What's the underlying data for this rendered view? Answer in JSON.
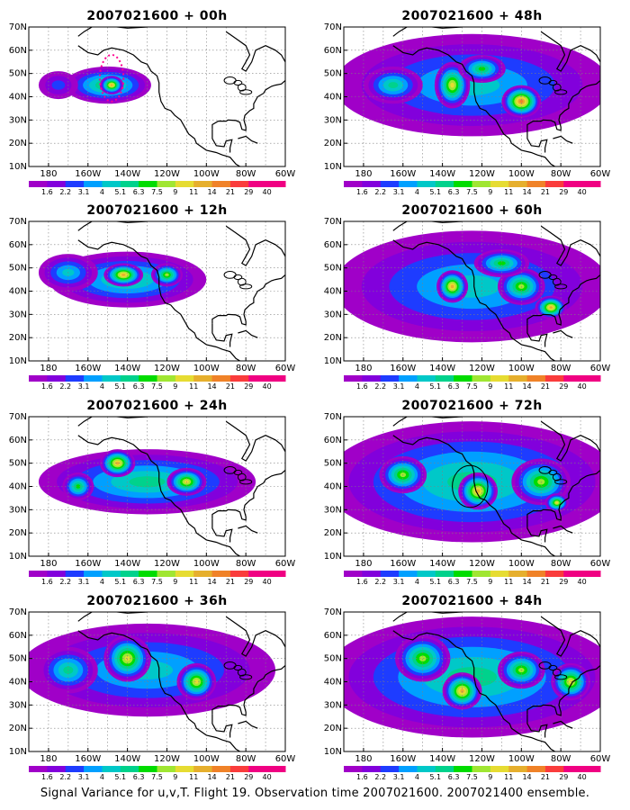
{
  "caption": "Signal Variance for u,v,T. Flight 19. Observation time 2007021600. 2007021400 ensemble.",
  "colorbar": {
    "labels": [
      "1.6",
      "2.2",
      "3.1",
      "4",
      "5.1",
      "6.3",
      "7.5",
      "9",
      "11",
      "14",
      "21",
      "29",
      "40"
    ],
    "colors": [
      "#a000c8",
      "#8200dc",
      "#1e3cff",
      "#00a0ff",
      "#00c8c8",
      "#00d28c",
      "#00dc00",
      "#a0e632",
      "#e6dc32",
      "#e6af2d",
      "#f08228",
      "#fa3c3c",
      "#f00082"
    ]
  },
  "map": {
    "lon_ticks": [
      "180",
      "160W",
      "140W",
      "120W",
      "100W",
      "80W",
      "60W"
    ],
    "lat_ticks": [
      "10N",
      "20N",
      "30N",
      "40N",
      "50N",
      "60N",
      "70N"
    ],
    "land_color": "#000000"
  },
  "chart_data": [
    {
      "type": "heatmap",
      "title": "2007021600 + 00h",
      "forecast_hour": 0,
      "blobs": [
        {
          "lon": -150,
          "lat": 45,
          "rx": 22,
          "ry": 8,
          "level": 6
        },
        {
          "lon": -175,
          "lat": 45,
          "rx": 10,
          "ry": 6,
          "level": 2
        },
        {
          "lon": -148,
          "lat": 45,
          "rx": 6,
          "ry": 4,
          "level": 9
        }
      ],
      "annotation": {
        "shape": "dotted-ellipse",
        "lon": -148,
        "lat": 48,
        "rlon": 6,
        "rlat": 10,
        "color": "#ff0090"
      }
    },
    {
      "type": "heatmap",
      "title": "2007021600 + 12h",
      "forecast_hour": 12,
      "blobs": [
        {
          "lon": -140,
          "lat": 45,
          "rx": 40,
          "ry": 12,
          "level": 5
        },
        {
          "lon": -142,
          "lat": 47,
          "rx": 10,
          "ry": 5,
          "level": 9
        },
        {
          "lon": -170,
          "lat": 48,
          "rx": 15,
          "ry": 8,
          "level": 4
        },
        {
          "lon": -120,
          "lat": 47,
          "rx": 8,
          "ry": 5,
          "level": 7
        }
      ]
    },
    {
      "type": "heatmap",
      "title": "2007021600 + 24h",
      "forecast_hour": 24,
      "blobs": [
        {
          "lon": -130,
          "lat": 42,
          "rx": 55,
          "ry": 14,
          "level": 5
        },
        {
          "lon": -145,
          "lat": 50,
          "rx": 9,
          "ry": 6,
          "level": 9
        },
        {
          "lon": -110,
          "lat": 42,
          "rx": 10,
          "ry": 6,
          "level": 8
        },
        {
          "lon": -165,
          "lat": 40,
          "rx": 8,
          "ry": 6,
          "level": 6
        }
      ]
    },
    {
      "type": "heatmap",
      "title": "2007021600 + 36h",
      "forecast_hour": 36,
      "blobs": [
        {
          "lon": -130,
          "lat": 45,
          "rx": 65,
          "ry": 20,
          "level": 4
        },
        {
          "lon": -140,
          "lat": 50,
          "rx": 12,
          "ry": 10,
          "level": 8
        },
        {
          "lon": -105,
          "lat": 40,
          "rx": 10,
          "ry": 8,
          "level": 8
        },
        {
          "lon": -170,
          "lat": 45,
          "rx": 15,
          "ry": 10,
          "level": 5
        }
      ]
    },
    {
      "type": "heatmap",
      "title": "2007021600 + 48h",
      "forecast_hour": 48,
      "blobs": [
        {
          "lon": -125,
          "lat": 45,
          "rx": 70,
          "ry": 22,
          "level": 4
        },
        {
          "lon": -135,
          "lat": 45,
          "rx": 9,
          "ry": 10,
          "level": 8
        },
        {
          "lon": -100,
          "lat": 38,
          "rx": 10,
          "ry": 7,
          "level": 10
        },
        {
          "lon": -120,
          "lat": 52,
          "rx": 12,
          "ry": 6,
          "level": 6
        },
        {
          "lon": -165,
          "lat": 45,
          "rx": 15,
          "ry": 8,
          "level": 5
        }
      ]
    },
    {
      "type": "heatmap",
      "title": "2007021600 + 60h",
      "forecast_hour": 60,
      "blobs": [
        {
          "lon": -125,
          "lat": 42,
          "rx": 70,
          "ry": 24,
          "level": 4
        },
        {
          "lon": -135,
          "lat": 42,
          "rx": 8,
          "ry": 7,
          "level": 9
        },
        {
          "lon": -100,
          "lat": 42,
          "rx": 12,
          "ry": 8,
          "level": 7
        },
        {
          "lon": -85,
          "lat": 33,
          "rx": 8,
          "ry": 5,
          "level": 9
        },
        {
          "lon": -110,
          "lat": 52,
          "rx": 14,
          "ry": 6,
          "level": 6
        }
      ]
    },
    {
      "type": "heatmap",
      "title": "2007021600 + 72h",
      "forecast_hour": 72,
      "blobs": [
        {
          "lon": -125,
          "lat": 42,
          "rx": 75,
          "ry": 26,
          "level": 5
        },
        {
          "lon": -122,
          "lat": 38,
          "rx": 10,
          "ry": 8,
          "level": 9
        },
        {
          "lon": -160,
          "lat": 45,
          "rx": 12,
          "ry": 8,
          "level": 7
        },
        {
          "lon": -90,
          "lat": 42,
          "rx": 15,
          "ry": 10,
          "level": 7
        },
        {
          "lon": -82,
          "lat": 33,
          "rx": 6,
          "ry": 4,
          "level": 8
        }
      ],
      "annotation": {
        "shape": "circle",
        "lon": -126,
        "lat": 40,
        "rlon": 9,
        "rlat": 9,
        "color": "#000000"
      }
    },
    {
      "type": "heatmap",
      "title": "2007021600 + 84h",
      "forecast_hour": 84,
      "blobs": [
        {
          "lon": -125,
          "lat": 42,
          "rx": 75,
          "ry": 26,
          "level": 5
        },
        {
          "lon": -130,
          "lat": 36,
          "rx": 10,
          "ry": 8,
          "level": 9
        },
        {
          "lon": -150,
          "lat": 50,
          "rx": 14,
          "ry": 10,
          "level": 7
        },
        {
          "lon": -75,
          "lat": 40,
          "rx": 10,
          "ry": 8,
          "level": 8
        },
        {
          "lon": -100,
          "lat": 45,
          "rx": 12,
          "ry": 8,
          "level": 7
        }
      ]
    }
  ]
}
